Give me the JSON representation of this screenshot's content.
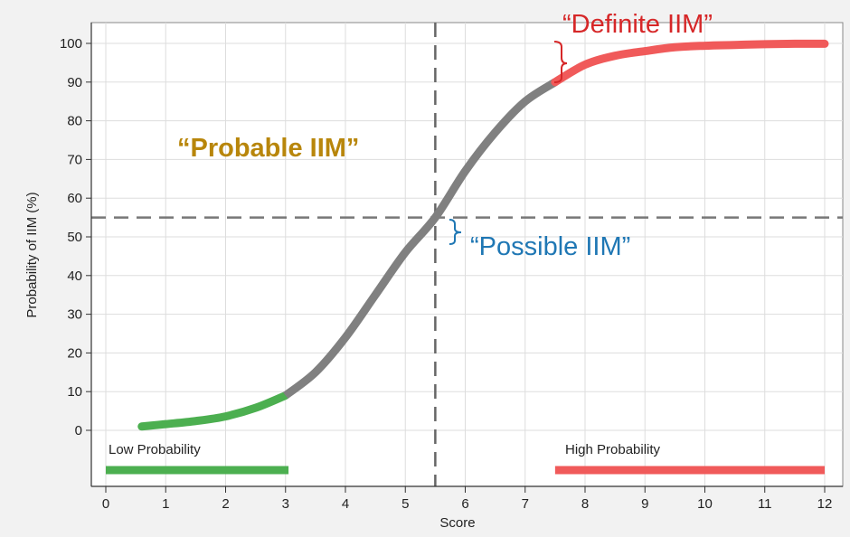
{
  "chart_data": {
    "type": "line",
    "xlabel": "Score",
    "ylabel": "Probability of IIM (%)",
    "xlim": [
      0,
      12
    ],
    "ylim": [
      -10,
      100
    ],
    "x_ticks": [
      0,
      1,
      2,
      3,
      4,
      5,
      6,
      7,
      8,
      9,
      10,
      11,
      12
    ],
    "y_ticks": [
      0,
      10,
      20,
      30,
      40,
      50,
      60,
      70,
      80,
      90,
      100
    ],
    "grid": true,
    "reference_lines": {
      "vertical_x": 5.5,
      "horizontal_y": 55
    },
    "series": [
      {
        "x": [
          0.6,
          1.0,
          1.5,
          2.0,
          2.5,
          3.0,
          3.5,
          4.0,
          4.5,
          5.0,
          5.5,
          6.0,
          6.5,
          7.0,
          7.5,
          8.0,
          8.5,
          9.0,
          9.5,
          10.0,
          10.5,
          11.0,
          11.5,
          12.0
        ],
        "y": [
          1,
          1.6,
          2.4,
          3.6,
          5.8,
          9,
          15,
          24,
          35,
          46,
          55,
          67,
          77,
          85,
          90,
          94.5,
          96.8,
          98,
          99,
          99.4,
          99.6,
          99.8,
          99.9,
          99.9
        ]
      }
    ],
    "segments": [
      {
        "x_from": 0.6,
        "x_to": 3.0,
        "color": "#4caf50"
      },
      {
        "x_from": 3.0,
        "x_to": 7.5,
        "color": "#808080"
      },
      {
        "x_from": 7.5,
        "x_to": 12.0,
        "color": "#f05a5a"
      }
    ],
    "bands": [
      {
        "label": "Low Probability",
        "x_from": 0.0,
        "x_to": 3.05,
        "color": "#4caf50"
      },
      {
        "label": "High Probability",
        "x_from": 7.5,
        "x_to": 12.0,
        "color": "#f05a5a"
      }
    ],
    "annotations": [
      {
        "text": "“Definite IIM”",
        "color": "#d62728"
      },
      {
        "text": "“Probable IIM”",
        "color": "#b8860b"
      },
      {
        "text": "“Possible IIM”",
        "color": "#1f77b4"
      }
    ]
  }
}
